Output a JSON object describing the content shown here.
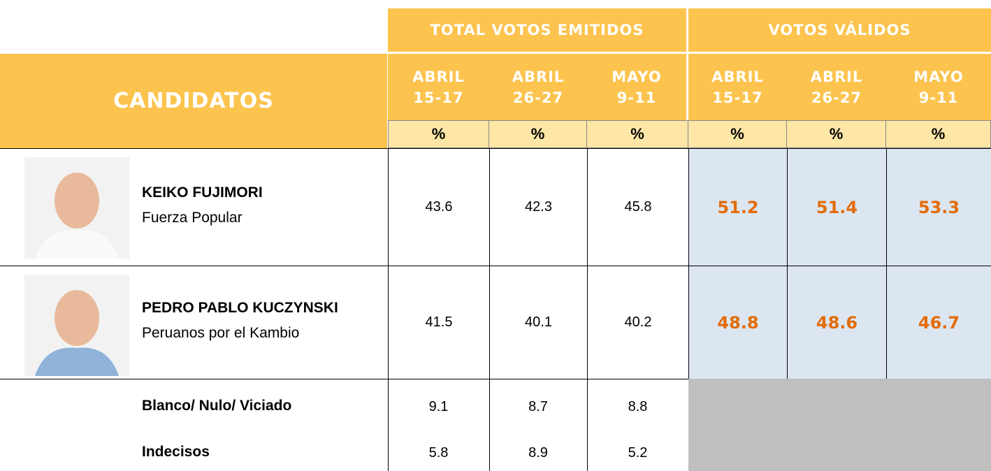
{
  "header": {
    "group_1": "TOTAL VOTOS EMITIDOS",
    "group_2": "VOTOS VÁLIDOS",
    "candidates_label": "CANDIDATOS",
    "columns": [
      {
        "month": "ABRIL",
        "days": "15-17",
        "unit": "%"
      },
      {
        "month": "ABRIL",
        "days": "26-27",
        "unit": "%"
      },
      {
        "month": "MAYO",
        "days": "9-11",
        "unit": "%"
      },
      {
        "month": "ABRIL",
        "days": "15-17",
        "unit": "%"
      },
      {
        "month": "ABRIL",
        "days": "26-27",
        "unit": "%"
      },
      {
        "month": "MAYO",
        "days": "9-11",
        "unit": "%"
      }
    ]
  },
  "candidates": [
    {
      "name": "KEIKO FUJIMORI",
      "party": "Fuerza Popular",
      "emitidos": [
        43.6,
        42.3,
        45.8
      ],
      "validos": [
        51.2,
        51.4,
        53.3
      ]
    },
    {
      "name": "PEDRO PABLO KUCZYNSKI",
      "party": "Peruanos por el Kambio",
      "emitidos": [
        41.5,
        40.1,
        40.2
      ],
      "validos": [
        48.8,
        48.6,
        46.7
      ]
    }
  ],
  "others": [
    {
      "label": "Blanco/ Nulo/ Viciado",
      "emitidos": [
        9.1,
        8.7,
        8.8
      ]
    },
    {
      "label": "Indecisos",
      "emitidos": [
        5.8,
        8.9,
        5.2
      ]
    }
  ]
}
